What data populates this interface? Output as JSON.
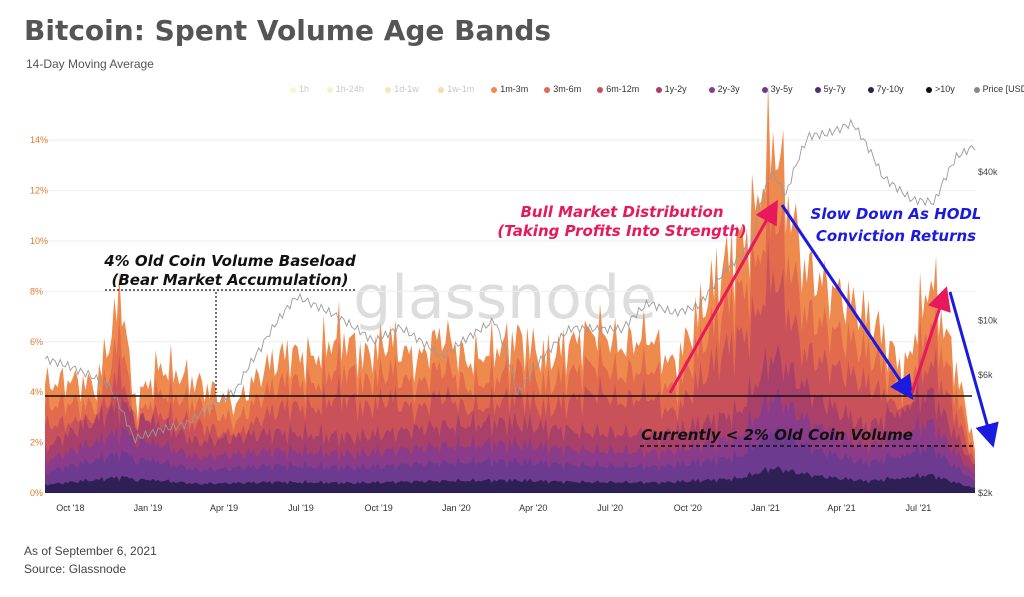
{
  "title": "Bitcoin: Spent Volume Age Bands",
  "subtitle": "14-Day Moving Average",
  "footer": {
    "date": "As of September 6, 2021",
    "source": "Source: Glassnode"
  },
  "watermark": "glassnode",
  "legend": [
    {
      "label": "1h",
      "color": "#fbe98a",
      "faded": true
    },
    {
      "label": "1h-24h",
      "color": "#f8dd72",
      "faded": true
    },
    {
      "label": "1d-1w",
      "color": "#f6c94c",
      "faded": true
    },
    {
      "label": "1w-1m",
      "color": "#f3b04b",
      "faded": true
    },
    {
      "label": "1m-3m",
      "color": "#ee8a4e",
      "faded": false
    },
    {
      "label": "3m-6m",
      "color": "#e06a4f",
      "faded": false
    },
    {
      "label": "6m-12m",
      "color": "#c9515a",
      "faded": false
    },
    {
      "label": "1y-2y",
      "color": "#a8406a",
      "faded": false
    },
    {
      "label": "2y-3y",
      "color": "#8a3b8a",
      "faded": false
    },
    {
      "label": "3y-5y",
      "color": "#6c3a8f",
      "faded": false
    },
    {
      "label": "5y-7y",
      "color": "#4c2d7a",
      "faded": false
    },
    {
      "label": "7y-10y",
      "color": "#2e1f55",
      "faded": false
    },
    {
      "label": ">10y",
      "color": "#111111",
      "faded": false
    },
    {
      "label": "Price [USD]",
      "color": "#888888",
      "faded": false
    }
  ],
  "annotations": {
    "baseload_line1": "4% Old Coin Volume Baseload",
    "baseload_line2": "(Bear Market Accumulation)",
    "distribution_line1": "Bull Market Distribution",
    "distribution_line2": "(Taking Profits Into Strength)",
    "slowdown_line1": "Slow Down As HODL",
    "slowdown_line2": "Conviction Returns",
    "currently": "Currently < 2% Old Coin Volume"
  },
  "colors": {
    "pink_arrow": "#e8185e",
    "blue_arrow": "#1b1be0",
    "baseline": "#111111"
  },
  "chart_data": {
    "type": "area",
    "x_ticks": [
      "Oct '18",
      "Jan '19",
      "Apr '19",
      "Jul '19",
      "Oct '19",
      "Jan '20",
      "Apr '20",
      "Jul '20",
      "Oct '20",
      "Jan '21",
      "Apr '21",
      "Jul '21"
    ],
    "y_left_ticks": [
      "0%",
      "2%",
      "4%",
      "6%",
      "8%",
      "10%",
      "12%",
      "14%"
    ],
    "y_left_range": [
      0,
      15
    ],
    "y_right_ticks": [
      "$2k",
      "$6k",
      "$10k",
      "$40k"
    ],
    "y_right_scale": "log",
    "x_range": [
      "2018-09-01",
      "2021-09-06"
    ],
    "reference_line": 4,
    "total_spent_pct": [
      [
        "2018-09-01",
        4.3
      ],
      [
        "2018-10-01",
        4.5
      ],
      [
        "2018-11-01",
        4.2
      ],
      [
        "2018-12-01",
        8.0
      ],
      [
        "2018-12-15",
        3.5
      ],
      [
        "2019-01-15",
        5.0
      ],
      [
        "2019-02-15",
        4.6
      ],
      [
        "2019-03-15",
        4.1
      ],
      [
        "2019-04-15",
        3.5
      ],
      [
        "2019-05-15",
        4.8
      ],
      [
        "2019-06-15",
        5.6
      ],
      [
        "2019-07-15",
        5.3
      ],
      [
        "2019-08-15",
        6.3
      ],
      [
        "2019-09-15",
        5.4
      ],
      [
        "2019-10-15",
        6.1
      ],
      [
        "2019-11-15",
        5.2
      ],
      [
        "2019-12-15",
        6.4
      ],
      [
        "2020-01-15",
        5.2
      ],
      [
        "2020-02-15",
        5.7
      ],
      [
        "2020-03-15",
        6.2
      ],
      [
        "2020-04-15",
        5.3
      ],
      [
        "2020-05-15",
        5.9
      ],
      [
        "2020-06-15",
        6.5
      ],
      [
        "2020-07-15",
        5.8
      ],
      [
        "2020-08-15",
        6.3
      ],
      [
        "2020-09-15",
        5.0
      ],
      [
        "2020-10-15",
        7.2
      ],
      [
        "2020-11-15",
        9.2
      ],
      [
        "2020-12-15",
        10.5
      ],
      [
        "2021-01-10",
        14.2
      ],
      [
        "2021-02-15",
        9.0
      ],
      [
        "2021-03-15",
        8.2
      ],
      [
        "2021-04-15",
        7.5
      ],
      [
        "2021-05-15",
        6.5
      ],
      [
        "2021-06-15",
        4.8
      ],
      [
        "2021-07-15",
        8.6
      ],
      [
        "2021-08-15",
        4.9
      ],
      [
        "2021-09-06",
        1.8
      ]
    ],
    "old_coin_pct": [
      [
        "2018-09-01",
        1.8
      ],
      [
        "2018-12-01",
        3.5
      ],
      [
        "2019-03-01",
        2.0
      ],
      [
        "2019-06-01",
        2.4
      ],
      [
        "2019-09-01",
        2.2
      ],
      [
        "2019-12-01",
        2.6
      ],
      [
        "2020-03-01",
        2.8
      ],
      [
        "2020-06-01",
        2.4
      ],
      [
        "2020-09-01",
        2.3
      ],
      [
        "2020-12-01",
        3.2
      ],
      [
        "2021-01-10",
        5.5
      ],
      [
        "2021-03-01",
        3.8
      ],
      [
        "2021-05-01",
        2.6
      ],
      [
        "2021-07-15",
        4.0
      ],
      [
        "2021-09-06",
        1.0
      ]
    ],
    "price_usd": [
      [
        "2018-09-01",
        7000
      ],
      [
        "2018-10-01",
        6500
      ],
      [
        "2018-11-15",
        5500
      ],
      [
        "2018-12-15",
        3300
      ],
      [
        "2019-01-15",
        3600
      ],
      [
        "2019-02-15",
        3800
      ],
      [
        "2019-04-15",
        5200
      ],
      [
        "2019-05-15",
        7800
      ],
      [
        "2019-06-26",
        12500
      ],
      [
        "2019-08-15",
        10300
      ],
      [
        "2019-09-26",
        8200
      ],
      [
        "2019-10-26",
        9400
      ],
      [
        "2019-12-15",
        7100
      ],
      [
        "2020-02-15",
        10000
      ],
      [
        "2020-03-13",
        5000
      ],
      [
        "2020-05-15",
        9300
      ],
      [
        "2020-07-15",
        9200
      ],
      [
        "2020-08-15",
        11800
      ],
      [
        "2020-09-15",
        10700
      ],
      [
        "2020-10-15",
        11500
      ],
      [
        "2020-11-15",
        16000
      ],
      [
        "2020-12-15",
        20000
      ],
      [
        "2021-01-08",
        40000
      ],
      [
        "2021-01-25",
        32000
      ],
      [
        "2021-02-21",
        56000
      ],
      [
        "2021-03-15",
        57000
      ],
      [
        "2021-04-14",
        63000
      ],
      [
        "2021-05-20",
        38000
      ],
      [
        "2021-06-22",
        31000
      ],
      [
        "2021-07-20",
        30000
      ],
      [
        "2021-08-15",
        46000
      ],
      [
        "2021-09-06",
        51000
      ]
    ]
  }
}
